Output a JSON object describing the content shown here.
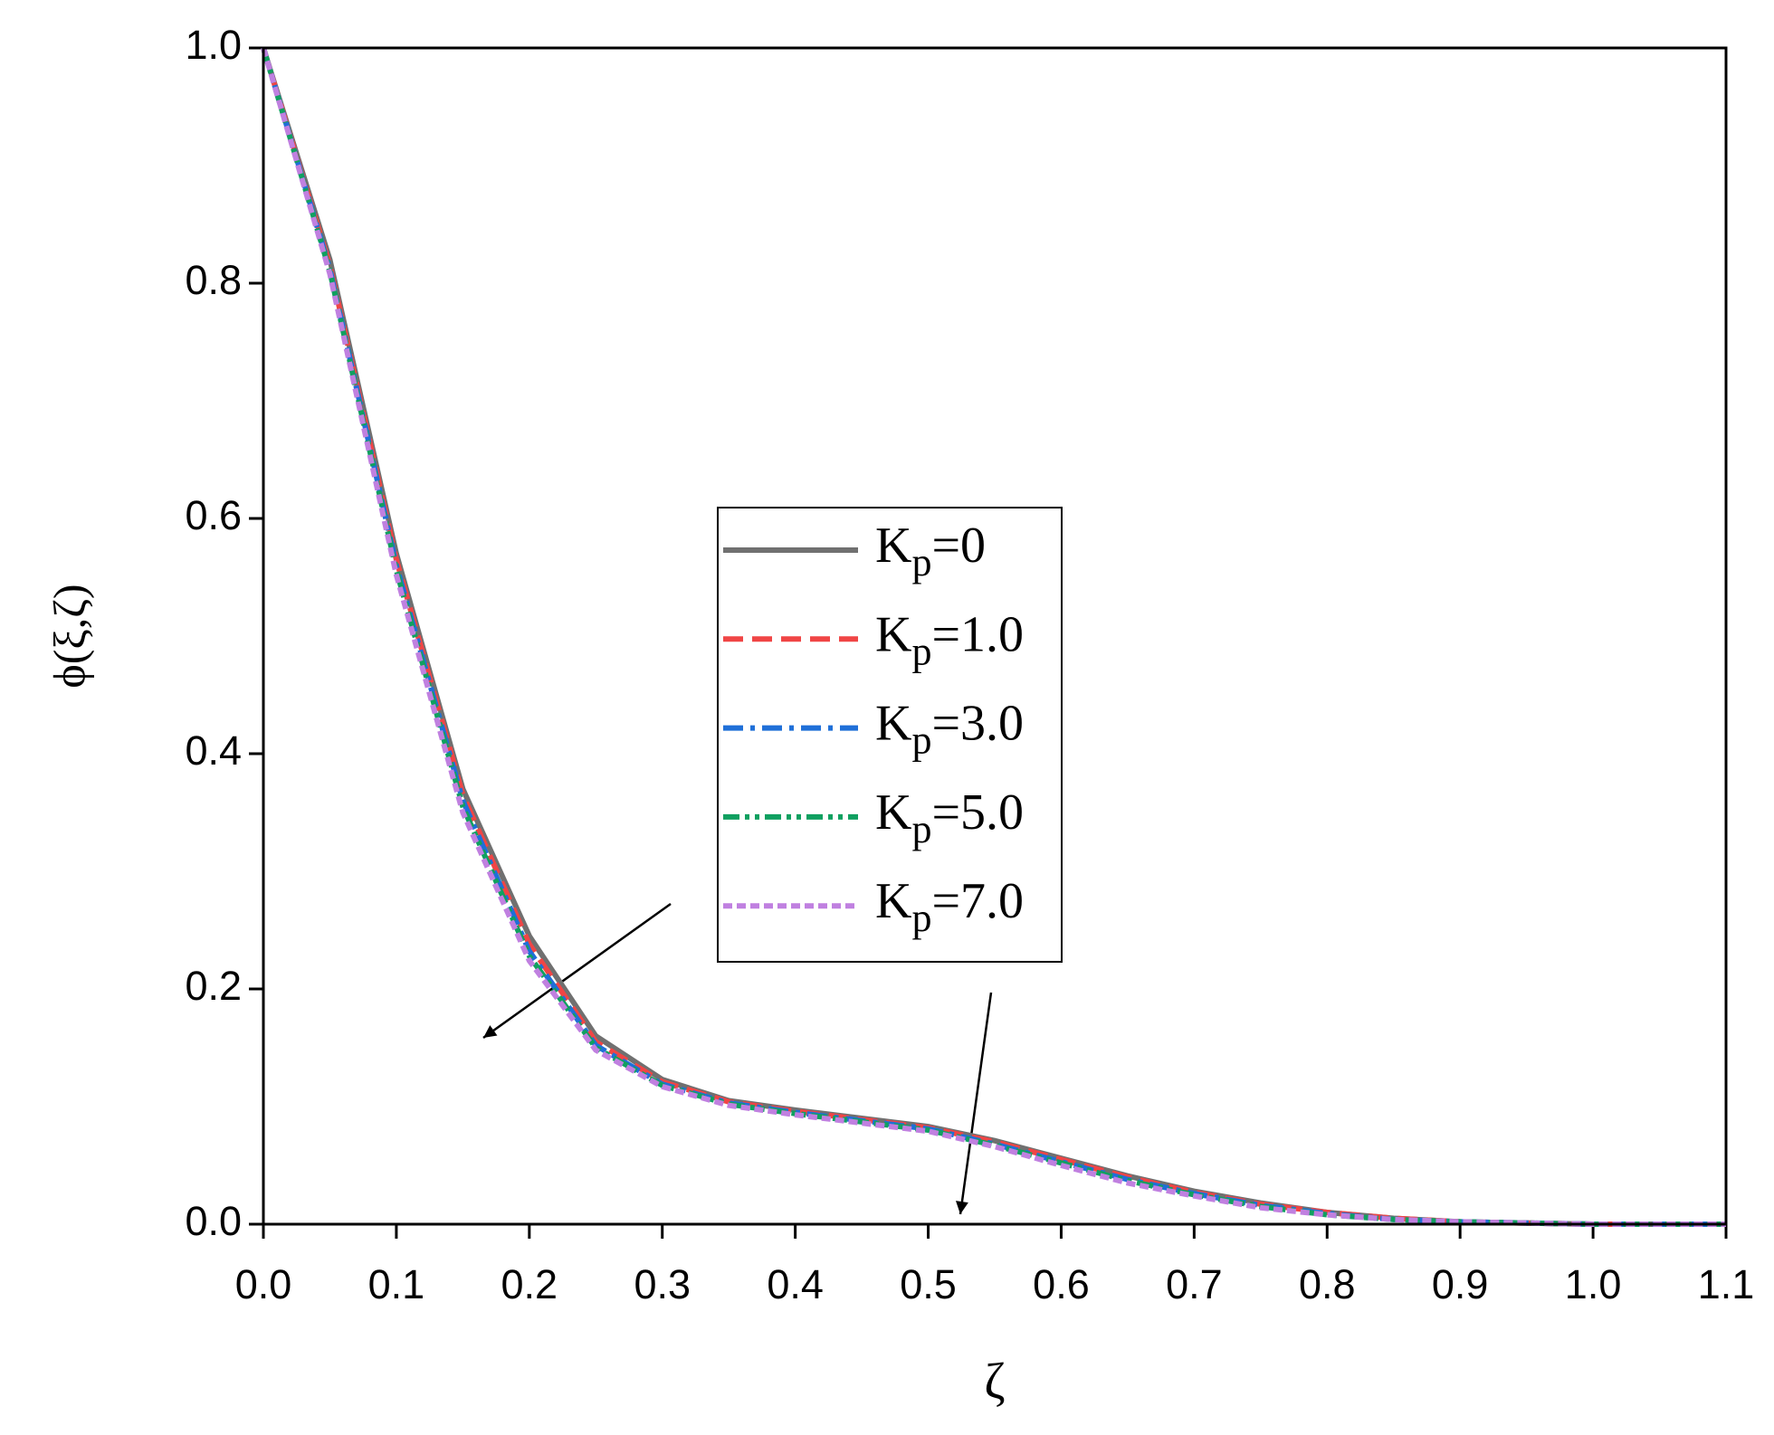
{
  "chart_data": {
    "type": "line",
    "x_label": "ζ",
    "y_label": "ϕ(ξ,ζ)",
    "x": [
      0,
      0.05,
      0.1,
      0.15,
      0.2,
      0.25,
      0.3,
      0.35,
      0.4,
      0.45,
      0.5,
      0.55,
      0.6,
      0.65,
      0.7,
      0.75,
      0.8,
      0.85,
      0.9,
      0.95,
      1.0,
      1.05,
      1.1
    ],
    "series": [
      {
        "name": "Kp=0",
        "color": "#707070",
        "dash": "solid",
        "values": [
          1.0,
          0.82,
          0.57,
          0.37,
          0.245,
          0.16,
          0.123,
          0.105,
          0.097,
          0.09,
          0.083,
          0.071,
          0.056,
          0.041,
          0.028,
          0.018,
          0.01,
          0.005,
          0.002,
          0.001,
          0.0,
          0.0,
          0.0
        ]
      },
      {
        "name": "Kp=1.0",
        "color": "#f04545",
        "dash": "dash",
        "values": [
          1.0,
          0.815,
          0.565,
          0.365,
          0.238,
          0.155,
          0.121,
          0.104,
          0.096,
          0.089,
          0.082,
          0.07,
          0.055,
          0.04,
          0.027,
          0.017,
          0.01,
          0.005,
          0.002,
          0.001,
          0.0,
          0.0,
          0.0
        ]
      },
      {
        "name": "Kp=3.0",
        "color": "#1f6fd8",
        "dash": "dashdot",
        "values": [
          1.0,
          0.812,
          0.56,
          0.36,
          0.232,
          0.152,
          0.119,
          0.103,
          0.095,
          0.088,
          0.081,
          0.068,
          0.053,
          0.038,
          0.026,
          0.016,
          0.009,
          0.004,
          0.002,
          0.001,
          0.0,
          0.0,
          0.0
        ]
      },
      {
        "name": "Kp=5.0",
        "color": "#10a060",
        "dash": "dashdotdot",
        "values": [
          1.0,
          0.81,
          0.556,
          0.355,
          0.228,
          0.15,
          0.118,
          0.102,
          0.094,
          0.087,
          0.08,
          0.067,
          0.052,
          0.037,
          0.025,
          0.015,
          0.008,
          0.004,
          0.002,
          0.001,
          0.0,
          0.0,
          0.0
        ]
      },
      {
        "name": "Kp=7.0",
        "color": "#c080e0",
        "dash": "short",
        "values": [
          1.0,
          0.808,
          0.552,
          0.35,
          0.224,
          0.148,
          0.117,
          0.101,
          0.093,
          0.086,
          0.079,
          0.066,
          0.05,
          0.035,
          0.024,
          0.014,
          0.008,
          0.004,
          0.002,
          0.001,
          0.0,
          0.0,
          0.0
        ]
      }
    ],
    "xlim": [
      0,
      1.1
    ],
    "ylim": [
      0,
      1.0
    ],
    "xticks": [
      {
        "value": 0,
        "label": "0.0"
      },
      0.1,
      0.2,
      0.3,
      0.4,
      0.5,
      0.6,
      0.7,
      0.8,
      0.9,
      {
        "value": 1.0,
        "label": "1.0"
      },
      1.1
    ],
    "yticks": [
      {
        "value": 0,
        "label": "0.0"
      },
      0.2,
      0.4,
      0.6,
      0.8,
      {
        "value": 1.0,
        "label": "1.0"
      }
    ],
    "grid": false,
    "legend": "center"
  }
}
